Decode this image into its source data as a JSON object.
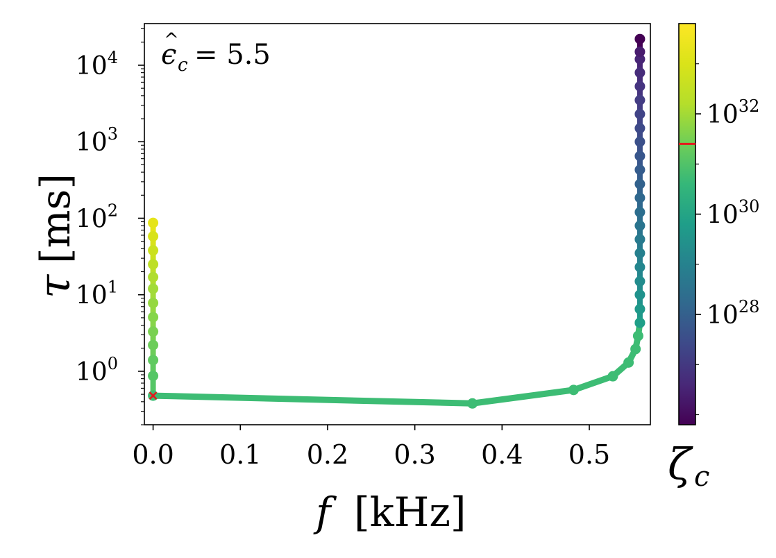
{
  "chart_data": {
    "type": "line",
    "x_scale": "linear",
    "y_scale": "log",
    "xlim": [
      -0.01,
      0.57
    ],
    "ylim": [
      0.2,
      35000
    ],
    "xticks": [
      0.0,
      0.1,
      0.2,
      0.3,
      0.4,
      0.5
    ],
    "xtick_labels": [
      "0.0",
      "0.1",
      "0.2",
      "0.3",
      "0.4",
      "0.5"
    ],
    "yticks": [
      1,
      10,
      100,
      1000,
      10000
    ],
    "ytick_labels": [
      {
        "base": "10",
        "exp": "0"
      },
      {
        "base": "10",
        "exp": "1"
      },
      {
        "base": "10",
        "exp": "2"
      },
      {
        "base": "10",
        "exp": "3"
      },
      {
        "base": "10",
        "exp": "4"
      }
    ],
    "xlabel": {
      "symbol": "f",
      "unit": "[kHz]"
    },
    "ylabel": {
      "symbol": "τ",
      "unit": "[ms]"
    },
    "annotation": {
      "hat": "ϵ",
      "sub": "c",
      "value": "= 5.5"
    },
    "grid": false,
    "legend": "none",
    "branch_left": {
      "f": [
        0,
        0,
        0,
        0,
        0,
        0,
        0,
        0,
        0,
        0,
        0,
        0,
        0,
        0,
        0
      ],
      "tau": [
        0.48,
        0.87,
        1.4,
        2.2,
        3.3,
        5.1,
        7.8,
        12,
        17,
        25,
        38,
        58,
        87,
        58,
        87
      ],
      "colors": [
        "#3dbc74",
        "#55c666",
        "#60ca60",
        "#6ccd5a",
        "#7ad151",
        "#86d549",
        "#95d840",
        "#a2db39",
        "#b0dd2f",
        "#bddf26",
        "#cbe11e",
        "#d8e219",
        "#e5e419",
        "#f0e51c",
        "#fde725"
      ]
    },
    "branch_main": {
      "f": [
        0,
        0.366,
        0.482,
        0.527,
        0.545,
        0.553,
        0.556,
        0.558
      ],
      "tau": [
        0.48,
        0.38,
        0.57,
        0.86,
        1.3,
        1.95,
        2.9,
        4.3
      ],
      "color": "#3dbc74"
    },
    "branch_right": {
      "f": 0.558,
      "tau": [
        4.3,
        6.5,
        10,
        15,
        23,
        35,
        53,
        80,
        120,
        185,
        280,
        430,
        650,
        1000,
        1500,
        2300,
        3500,
        5300,
        8000,
        12000,
        15000,
        22000
      ],
      "colors": [
        "#1f9f88",
        "#1f998a",
        "#20928c",
        "#228c8d",
        "#24868e",
        "#26808e",
        "#287a8e",
        "#2a748e",
        "#2c6e8e",
        "#2f688e",
        "#32628d",
        "#355c8d",
        "#38568c",
        "#3b508a",
        "#3e4a89",
        "#414487",
        "#443d84",
        "#463480",
        "#472d7b",
        "#482576",
        "#481c6e",
        "#440154"
      ]
    },
    "marker": {
      "f": 0,
      "tau": 0.48,
      "symbol": "x",
      "color": "#e41a1c"
    },
    "colorbar": {
      "label": {
        "symbol": "ζ",
        "sub": "c"
      },
      "scale": "log",
      "cmap": "viridis",
      "range_log10": [
        25.8,
        33.8
      ],
      "ticks_log10": [
        28,
        30,
        32
      ],
      "tick_labels": [
        {
          "base": "10",
          "exp": "28"
        },
        {
          "base": "10",
          "exp": "30"
        },
        {
          "base": "10",
          "exp": "32"
        }
      ],
      "threshold_log10": 31.4,
      "threshold_color": "#e41a1c"
    }
  }
}
